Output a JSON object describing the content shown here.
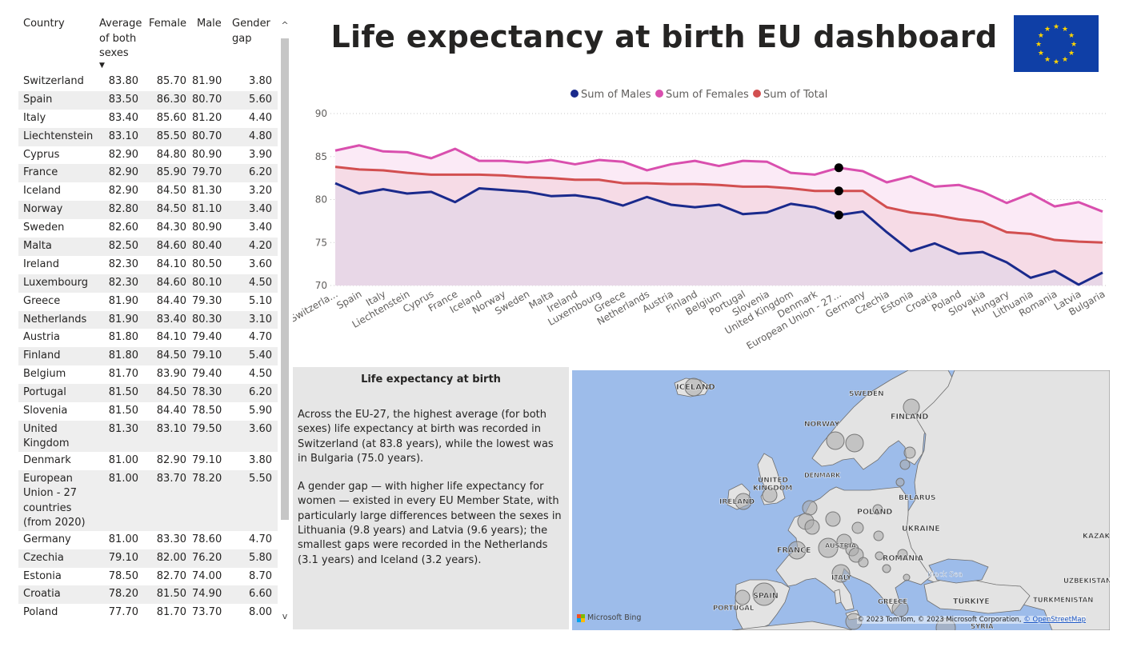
{
  "title": "Life expectancy at birth EU dashboard",
  "table": {
    "headers": [
      "Country",
      "Average of both sexes",
      "Female",
      "Male",
      "Gender gap"
    ],
    "sort_icon": "sort-desc-icon",
    "rows": [
      [
        "Switzerland",
        "83.80",
        "85.70",
        "81.90",
        "3.80"
      ],
      [
        "Spain",
        "83.50",
        "86.30",
        "80.70",
        "5.60"
      ],
      [
        "Italy",
        "83.40",
        "85.60",
        "81.20",
        "4.40"
      ],
      [
        "Liechtenstein",
        "83.10",
        "85.50",
        "80.70",
        "4.80"
      ],
      [
        "Cyprus",
        "82.90",
        "84.80",
        "80.90",
        "3.90"
      ],
      [
        "France",
        "82.90",
        "85.90",
        "79.70",
        "6.20"
      ],
      [
        "Iceland",
        "82.90",
        "84.50",
        "81.30",
        "3.20"
      ],
      [
        "Norway",
        "82.80",
        "84.50",
        "81.10",
        "3.40"
      ],
      [
        "Sweden",
        "82.60",
        "84.30",
        "80.90",
        "3.40"
      ],
      [
        "Malta",
        "82.50",
        "84.60",
        "80.40",
        "4.20"
      ],
      [
        "Ireland",
        "82.30",
        "84.10",
        "80.50",
        "3.60"
      ],
      [
        "Luxembourg",
        "82.30",
        "84.60",
        "80.10",
        "4.50"
      ],
      [
        "Greece",
        "81.90",
        "84.40",
        "79.30",
        "5.10"
      ],
      [
        "Netherlands",
        "81.90",
        "83.40",
        "80.30",
        "3.10"
      ],
      [
        "Austria",
        "81.80",
        "84.10",
        "79.40",
        "4.70"
      ],
      [
        "Finland",
        "81.80",
        "84.50",
        "79.10",
        "5.40"
      ],
      [
        "Belgium",
        "81.70",
        "83.90",
        "79.40",
        "4.50"
      ],
      [
        "Portugal",
        "81.50",
        "84.50",
        "78.30",
        "6.20"
      ],
      [
        "Slovenia",
        "81.50",
        "84.40",
        "78.50",
        "5.90"
      ],
      [
        "United Kingdom",
        "81.30",
        "83.10",
        "79.50",
        "3.60"
      ],
      [
        "Denmark",
        "81.00",
        "82.90",
        "79.10",
        "3.80"
      ],
      [
        "European Union - 27 countries (from 2020)",
        "81.00",
        "83.70",
        "78.20",
        "5.50"
      ],
      [
        "Germany",
        "81.00",
        "83.30",
        "78.60",
        "4.70"
      ],
      [
        "Czechia",
        "79.10",
        "82.00",
        "76.20",
        "5.80"
      ],
      [
        "Estonia",
        "78.50",
        "82.70",
        "74.00",
        "8.70"
      ],
      [
        "Croatia",
        "78.20",
        "81.50",
        "74.90",
        "6.60"
      ],
      [
        "Poland",
        "77.70",
        "81.70",
        "73.70",
        "8.00"
      ]
    ]
  },
  "chart_data": {
    "type": "line",
    "categories": [
      "Switzerla...",
      "Spain",
      "Italy",
      "Liechtenstein",
      "Cyprus",
      "France",
      "Iceland",
      "Norway",
      "Sweden",
      "Malta",
      "Ireland",
      "Luxembourg",
      "Greece",
      "Netherlands",
      "Austria",
      "Finland",
      "Belgium",
      "Portugal",
      "Slovenia",
      "United Kingdom",
      "Denmark",
      "European Union - 27...",
      "Germany",
      "Czechia",
      "Estonia",
      "Croatia",
      "Poland",
      "Slovakia",
      "Hungary",
      "Lithuania",
      "Romania",
      "Latvia",
      "Bulgaria"
    ],
    "series": [
      {
        "name": "Sum of Males",
        "color": "#1a2a8c",
        "values": [
          81.9,
          80.7,
          81.2,
          80.7,
          80.9,
          79.7,
          81.3,
          81.1,
          80.9,
          80.4,
          80.5,
          80.1,
          79.3,
          80.3,
          79.4,
          79.1,
          79.4,
          78.3,
          78.5,
          79.5,
          79.1,
          78.2,
          78.6,
          76.2,
          74.0,
          74.9,
          73.7,
          73.9,
          72.7,
          70.9,
          71.7,
          70.1,
          71.5
        ]
      },
      {
        "name": "Sum of Females",
        "color": "#d94fae",
        "values": [
          85.7,
          86.3,
          85.6,
          85.5,
          84.8,
          85.9,
          84.5,
          84.5,
          84.3,
          84.6,
          84.1,
          84.6,
          84.4,
          83.4,
          84.1,
          84.5,
          83.9,
          84.5,
          84.4,
          83.1,
          82.9,
          83.7,
          83.3,
          82.0,
          82.7,
          81.5,
          81.7,
          80.9,
          79.6,
          80.7,
          79.2,
          79.7,
          78.6
        ]
      },
      {
        "name": "Sum of Total",
        "color": "#d24f50",
        "values": [
          83.8,
          83.5,
          83.4,
          83.1,
          82.9,
          82.9,
          82.9,
          82.8,
          82.6,
          82.5,
          82.3,
          82.3,
          81.9,
          81.9,
          81.8,
          81.8,
          81.7,
          81.5,
          81.5,
          81.3,
          81.0,
          81.0,
          81.0,
          79.1,
          78.5,
          78.2,
          77.7,
          77.4,
          76.2,
          76.0,
          75.3,
          75.1,
          75.0
        ]
      }
    ],
    "highlight_category": "European Union - 27...",
    "yticks": [
      70,
      75,
      80,
      85,
      90
    ],
    "ylim": [
      70,
      90
    ],
    "legend_position": "top-center",
    "grid": true
  },
  "textbox": {
    "title": "Life expectancy at birth",
    "paragraph1": "Across the EU-27, the highest average (for both sexes) life expectancy at birth was recorded in Switzerland (at 83.8 years), while the lowest was in Bulgaria (75.0 years).",
    "paragraph2": "A gender gap — with higher life expectancy for women — existed in every EU Member State, with particularly large differences between the sexes in Lithuania (9.8 years) and Latvia (9.6 years); the smallest gaps were recorded in the Netherlands (3.1 years) and Iceland (3.2 years)."
  },
  "map": {
    "labels": [
      {
        "name": "ICELAND",
        "text": "ICELAND"
      },
      {
        "name": "SWEDEN",
        "text": "SWEDEN"
      },
      {
        "name": "FINLAND",
        "text": "FINLAND"
      },
      {
        "name": "NORWAY",
        "text": "NORWAY"
      },
      {
        "name": "DENMARK",
        "text": "DENMARK"
      },
      {
        "name": "UNITED",
        "text": "UNITED"
      },
      {
        "name": "KINGDOM",
        "text": "KINGDOM"
      },
      {
        "name": "IRELAND",
        "text": "IRELAND"
      },
      {
        "name": "BELARUS",
        "text": "BELARUS"
      },
      {
        "name": "POLAND",
        "text": "POLAND"
      },
      {
        "name": "UKRAINE",
        "text": "UKRAINE"
      },
      {
        "name": "FRANCE",
        "text": "FRANCE"
      },
      {
        "name": "AUSTRIA",
        "text": "AUSTRIA"
      },
      {
        "name": "ROMANIA",
        "text": "ROMANIA"
      },
      {
        "name": "ITALY",
        "text": "ITALY"
      },
      {
        "name": "SPAIN",
        "text": "SPAIN"
      },
      {
        "name": "PORTUGAL",
        "text": "PORTUGAL"
      },
      {
        "name": "GREECE",
        "text": "GREECE"
      },
      {
        "name": "TURKIYE",
        "text": "TÜRKIYE"
      },
      {
        "name": "KAZAK",
        "text": "KAZAK"
      },
      {
        "name": "UZBEKISTAN",
        "text": "UZBEKISTAN"
      },
      {
        "name": "TURKMENISTAN",
        "text": "TURKMENISTAN"
      },
      {
        "name": "SYRIA",
        "text": "SYRIA"
      },
      {
        "name": "BLACK-SEA",
        "text": "Black Sea"
      }
    ],
    "attribution": "© 2023 TomTom, © 2023 Microsoft Corporation, ",
    "attribution_link": "© OpenStreetMap",
    "logo_text": "Microsoft Bing"
  },
  "colors": {
    "eu_blue": "#0f3fa6",
    "eu_star": "#ffd500",
    "row_stripe": "#eeeeee",
    "land": "#e3e3e3",
    "sea": "#9dbcea"
  }
}
